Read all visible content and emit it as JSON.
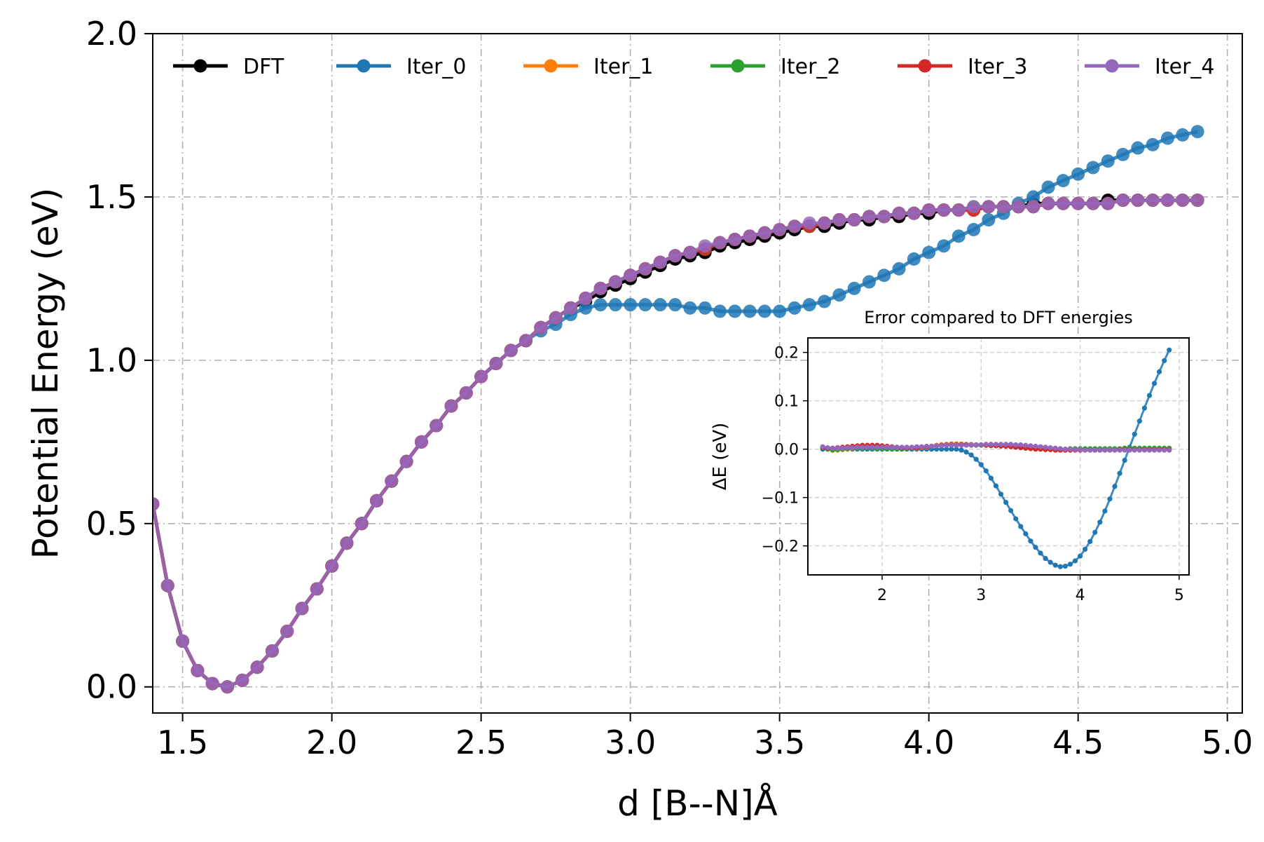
{
  "chart_data": [
    {
      "type": "line",
      "xlabel": "d [B--N]Å",
      "ylabel": "Potential Energy (eV)",
      "xlim": [
        1.4,
        5.05
      ],
      "ylim": [
        -0.08,
        2.0
      ],
      "xticks": [
        1.5,
        2.0,
        2.5,
        3.0,
        3.5,
        4.0,
        4.5,
        5.0
      ],
      "xtick_labels": [
        "1.5",
        "2.0",
        "2.5",
        "3.0",
        "3.5",
        "4.0",
        "4.5",
        "5.0"
      ],
      "yticks": [
        0.0,
        0.5,
        1.0,
        1.5,
        2.0
      ],
      "ytick_labels": [
        "0.0",
        "0.5",
        "1.0",
        "1.5",
        "2.0"
      ],
      "grid": true,
      "legend_position": "top",
      "x": [
        1.4,
        1.45,
        1.5,
        1.55,
        1.6,
        1.65,
        1.7,
        1.75,
        1.8,
        1.85,
        1.9,
        1.95,
        2.0,
        2.05,
        2.1,
        2.15,
        2.2,
        2.25,
        2.3,
        2.35,
        2.4,
        2.45,
        2.5,
        2.55,
        2.6,
        2.65,
        2.7,
        2.75,
        2.8,
        2.85,
        2.9,
        2.95,
        3.0,
        3.05,
        3.1,
        3.15,
        3.2,
        3.25,
        3.3,
        3.35,
        3.4,
        3.45,
        3.5,
        3.55,
        3.6,
        3.65,
        3.7,
        3.75,
        3.8,
        3.85,
        3.9,
        3.95,
        4.0,
        4.05,
        4.1,
        4.15,
        4.2,
        4.25,
        4.3,
        4.35,
        4.4,
        4.45,
        4.5,
        4.55,
        4.6,
        4.65,
        4.7,
        4.75,
        4.8,
        4.85,
        4.9
      ],
      "series": [
        {
          "name": "DFT",
          "color": "#000000",
          "values": [
            0.56,
            0.31,
            0.14,
            0.05,
            0.01,
            0.0,
            0.02,
            0.06,
            0.11,
            0.17,
            0.24,
            0.3,
            0.37,
            0.44,
            0.5,
            0.57,
            0.63,
            0.69,
            0.75,
            0.8,
            0.86,
            0.9,
            0.95,
            0.99,
            1.03,
            1.06,
            1.1,
            1.13,
            1.16,
            1.18,
            1.21,
            1.23,
            1.25,
            1.27,
            1.29,
            1.31,
            1.32,
            1.33,
            1.35,
            1.36,
            1.37,
            1.38,
            1.39,
            1.4,
            1.41,
            1.41,
            1.42,
            1.43,
            1.43,
            1.44,
            1.44,
            1.45,
            1.45,
            1.46,
            1.46,
            1.46,
            1.47,
            1.47,
            1.47,
            1.48,
            1.48,
            1.48,
            1.48,
            1.48,
            1.49,
            1.49,
            1.49,
            1.49,
            1.49,
            1.49,
            1.49
          ]
        },
        {
          "name": "Iter_0",
          "color": "#1f77b4",
          "values": [
            0.56,
            0.31,
            0.14,
            0.05,
            0.01,
            0.0,
            0.02,
            0.06,
            0.11,
            0.17,
            0.24,
            0.3,
            0.37,
            0.44,
            0.5,
            0.57,
            0.63,
            0.69,
            0.75,
            0.8,
            0.86,
            0.9,
            0.95,
            0.99,
            1.03,
            1.06,
            1.09,
            1.11,
            1.14,
            1.16,
            1.17,
            1.17,
            1.17,
            1.17,
            1.17,
            1.17,
            1.16,
            1.16,
            1.15,
            1.15,
            1.15,
            1.15,
            1.15,
            1.16,
            1.17,
            1.18,
            1.2,
            1.22,
            1.24,
            1.26,
            1.28,
            1.31,
            1.33,
            1.35,
            1.38,
            1.4,
            1.43,
            1.45,
            1.48,
            1.5,
            1.53,
            1.55,
            1.57,
            1.59,
            1.61,
            1.63,
            1.65,
            1.66,
            1.68,
            1.69,
            1.7
          ]
        },
        {
          "name": "Iter_1",
          "color": "#ff7f0e",
          "values": [
            0.56,
            0.31,
            0.14,
            0.05,
            0.01,
            0.0,
            0.02,
            0.06,
            0.11,
            0.17,
            0.24,
            0.3,
            0.37,
            0.44,
            0.5,
            0.57,
            0.63,
            0.69,
            0.75,
            0.8,
            0.86,
            0.9,
            0.95,
            0.99,
            1.03,
            1.06,
            1.1,
            1.13,
            1.16,
            1.19,
            1.22,
            1.24,
            1.26,
            1.28,
            1.3,
            1.32,
            1.33,
            1.34,
            1.36,
            1.37,
            1.38,
            1.39,
            1.4,
            1.41,
            1.41,
            1.42,
            1.43,
            1.43,
            1.44,
            1.44,
            1.45,
            1.45,
            1.46,
            1.46,
            1.46,
            1.46,
            1.47,
            1.47,
            1.47,
            1.47,
            1.48,
            1.48,
            1.48,
            1.48,
            1.48,
            1.49,
            1.49,
            1.49,
            1.49,
            1.49,
            1.49
          ]
        },
        {
          "name": "Iter_2",
          "color": "#2ca02c",
          "values": [
            0.56,
            0.31,
            0.14,
            0.05,
            0.01,
            0.0,
            0.02,
            0.06,
            0.11,
            0.17,
            0.24,
            0.3,
            0.37,
            0.44,
            0.5,
            0.57,
            0.63,
            0.69,
            0.75,
            0.8,
            0.86,
            0.9,
            0.95,
            0.99,
            1.03,
            1.06,
            1.1,
            1.13,
            1.16,
            1.19,
            1.22,
            1.24,
            1.26,
            1.28,
            1.3,
            1.32,
            1.33,
            1.34,
            1.36,
            1.37,
            1.38,
            1.39,
            1.4,
            1.41,
            1.41,
            1.42,
            1.43,
            1.43,
            1.44,
            1.44,
            1.45,
            1.45,
            1.46,
            1.46,
            1.46,
            1.47,
            1.47,
            1.47,
            1.47,
            1.47,
            1.48,
            1.48,
            1.48,
            1.48,
            1.48,
            1.49,
            1.49,
            1.49,
            1.49,
            1.49,
            1.49
          ]
        },
        {
          "name": "Iter_3",
          "color": "#d62728",
          "values": [
            0.56,
            0.31,
            0.14,
            0.05,
            0.01,
            0.0,
            0.02,
            0.06,
            0.11,
            0.17,
            0.24,
            0.3,
            0.37,
            0.44,
            0.5,
            0.57,
            0.63,
            0.69,
            0.75,
            0.8,
            0.86,
            0.9,
            0.95,
            0.99,
            1.03,
            1.06,
            1.1,
            1.13,
            1.16,
            1.19,
            1.22,
            1.24,
            1.26,
            1.28,
            1.3,
            1.32,
            1.33,
            1.34,
            1.36,
            1.37,
            1.38,
            1.39,
            1.4,
            1.41,
            1.41,
            1.42,
            1.43,
            1.43,
            1.44,
            1.44,
            1.45,
            1.45,
            1.46,
            1.46,
            1.46,
            1.46,
            1.47,
            1.47,
            1.47,
            1.47,
            1.48,
            1.48,
            1.48,
            1.48,
            1.48,
            1.49,
            1.49,
            1.49,
            1.49,
            1.49,
            1.49
          ]
        },
        {
          "name": "Iter_4",
          "color": "#9467bd",
          "values": [
            0.56,
            0.31,
            0.14,
            0.05,
            0.01,
            0.0,
            0.02,
            0.06,
            0.11,
            0.17,
            0.24,
            0.3,
            0.37,
            0.44,
            0.5,
            0.57,
            0.63,
            0.69,
            0.75,
            0.8,
            0.86,
            0.9,
            0.95,
            0.99,
            1.03,
            1.06,
            1.1,
            1.13,
            1.16,
            1.19,
            1.22,
            1.24,
            1.26,
            1.28,
            1.3,
            1.32,
            1.33,
            1.35,
            1.36,
            1.37,
            1.38,
            1.39,
            1.4,
            1.41,
            1.42,
            1.42,
            1.43,
            1.43,
            1.44,
            1.44,
            1.45,
            1.45,
            1.46,
            1.46,
            1.46,
            1.47,
            1.47,
            1.47,
            1.47,
            1.47,
            1.48,
            1.48,
            1.48,
            1.48,
            1.48,
            1.49,
            1.49,
            1.49,
            1.49,
            1.49,
            1.49
          ]
        }
      ]
    },
    {
      "type": "line",
      "title": "Error compared to DFT energies",
      "ylabel": "ΔE (eV)",
      "xlim": [
        1.25,
        5.1
      ],
      "ylim": [
        -0.26,
        0.23
      ],
      "xticks": [
        2,
        3,
        4,
        5
      ],
      "xtick_labels": [
        "2",
        "3",
        "4",
        "5"
      ],
      "yticks": [
        0.2,
        0.1,
        0.0,
        -0.1,
        -0.2
      ],
      "ytick_labels": [
        "0.2",
        "0.1",
        "0.0",
        "−0.1",
        "−0.2"
      ],
      "grid": true,
      "x_start": 1.4,
      "x_step": 0.05,
      "series": [
        {
          "name": "Iter_0",
          "color": "#1f77b4",
          "values": [
            0.0,
            0.0,
            0.0,
            0.0,
            0.0,
            0.0,
            0.0,
            0.0,
            0.0,
            0.0,
            0.0,
            0.0,
            0.0,
            0.0,
            0.0,
            0.0,
            0.0,
            0.0,
            0.0,
            0.0,
            0.0,
            0.0,
            0.0,
            0.0,
            0.0,
            0.0,
            0.0,
            0.0,
            -0.002,
            -0.006,
            -0.012,
            -0.021,
            -0.032,
            -0.045,
            -0.06,
            -0.076,
            -0.093,
            -0.11,
            -0.127,
            -0.144,
            -0.16,
            -0.175,
            -0.19,
            -0.203,
            -0.215,
            -0.226,
            -0.234,
            -0.24,
            -0.243,
            -0.242,
            -0.238,
            -0.231,
            -0.221,
            -0.207,
            -0.191,
            -0.172,
            -0.151,
            -0.128,
            -0.103,
            -0.077,
            -0.05,
            -0.023,
            0.004,
            0.031,
            0.058,
            0.085,
            0.111,
            0.136,
            0.16,
            0.183,
            0.205
          ]
        },
        {
          "name": "Iter_1",
          "color": "#ff7f0e",
          "values": [
            0.004,
            0.0,
            -0.002,
            -0.002,
            -0.001,
            0.0,
            0.001,
            0.002,
            0.003,
            0.003,
            0.003,
            0.003,
            0.003,
            0.003,
            0.002,
            0.002,
            0.002,
            0.002,
            0.002,
            0.002,
            0.003,
            0.004,
            0.006,
            0.008,
            0.009,
            0.01,
            0.011,
            0.011,
            0.011,
            0.01,
            0.01,
            0.009,
            0.009,
            0.009,
            0.009,
            0.008,
            0.008,
            0.008,
            0.007,
            0.006,
            0.005,
            0.004,
            0.003,
            0.002,
            0.001,
            0.0,
            -0.001,
            -0.001,
            -0.002,
            -0.002,
            -0.002,
            -0.002,
            -0.002,
            -0.002,
            -0.002,
            -0.002,
            -0.002,
            -0.002,
            -0.002,
            -0.002,
            -0.001,
            -0.001,
            -0.001,
            -0.001,
            -0.001,
            -0.001,
            -0.001,
            -0.001,
            -0.001,
            -0.001,
            -0.001
          ]
        },
        {
          "name": "Iter_2",
          "color": "#2ca02c",
          "values": [
            0.003,
            0.0,
            -0.002,
            -0.001,
            0.0,
            0.001,
            0.002,
            0.002,
            0.002,
            0.002,
            0.002,
            0.001,
            0.001,
            0.001,
            0.001,
            0.001,
            0.001,
            0.002,
            0.002,
            0.003,
            0.004,
            0.005,
            0.006,
            0.007,
            0.008,
            0.008,
            0.009,
            0.009,
            0.009,
            0.009,
            0.008,
            0.008,
            0.008,
            0.008,
            0.007,
            0.007,
            0.006,
            0.006,
            0.005,
            0.004,
            0.003,
            0.002,
            0.002,
            0.001,
            0.0,
            0.0,
            0.0,
            0.0,
            0.0,
            0.0,
            0.001,
            0.001,
            0.001,
            0.001,
            0.001,
            0.001,
            0.001,
            0.001,
            0.001,
            0.001,
            0.001,
            0.002,
            0.002,
            0.002,
            0.002,
            0.002,
            0.002,
            0.002,
            0.002,
            0.002,
            0.002
          ]
        },
        {
          "name": "Iter_3",
          "color": "#d62728",
          "values": [
            0.004,
            0.002,
            0.002,
            0.003,
            0.004,
            0.005,
            0.006,
            0.007,
            0.008,
            0.008,
            0.008,
            0.008,
            0.007,
            0.006,
            0.005,
            0.004,
            0.003,
            0.003,
            0.003,
            0.003,
            0.004,
            0.005,
            0.006,
            0.007,
            0.008,
            0.009,
            0.009,
            0.009,
            0.009,
            0.009,
            0.009,
            0.009,
            0.009,
            0.008,
            0.008,
            0.007,
            0.007,
            0.006,
            0.005,
            0.004,
            0.003,
            0.002,
            0.001,
            0.0,
            0.0,
            -0.001,
            -0.001,
            -0.002,
            -0.002,
            -0.002,
            -0.002,
            -0.002,
            -0.002,
            -0.002,
            -0.002,
            -0.002,
            -0.002,
            -0.002,
            -0.002,
            -0.002,
            -0.001,
            -0.001,
            -0.001,
            -0.001,
            -0.001,
            -0.001,
            -0.001,
            -0.001,
            -0.001,
            -0.001,
            -0.001
          ]
        },
        {
          "name": "Iter_4",
          "color": "#9467bd",
          "values": [
            0.005,
            0.003,
            0.002,
            0.002,
            0.002,
            0.003,
            0.003,
            0.004,
            0.004,
            0.004,
            0.004,
            0.004,
            0.004,
            0.004,
            0.004,
            0.004,
            0.004,
            0.004,
            0.004,
            0.005,
            0.005,
            0.006,
            0.006,
            0.007,
            0.007,
            0.008,
            0.008,
            0.008,
            0.008,
            0.008,
            0.009,
            0.009,
            0.009,
            0.01,
            0.01,
            0.01,
            0.01,
            0.01,
            0.01,
            0.009,
            0.009,
            0.008,
            0.007,
            0.006,
            0.005,
            0.004,
            0.003,
            0.002,
            0.001,
            0.0,
            0.0,
            -0.001,
            -0.001,
            -0.002,
            -0.002,
            -0.002,
            -0.002,
            -0.002,
            -0.002,
            -0.002,
            -0.002,
            -0.002,
            -0.002,
            -0.002,
            -0.002,
            -0.002,
            -0.002,
            -0.002,
            -0.002,
            -0.002,
            -0.002
          ]
        }
      ]
    }
  ]
}
